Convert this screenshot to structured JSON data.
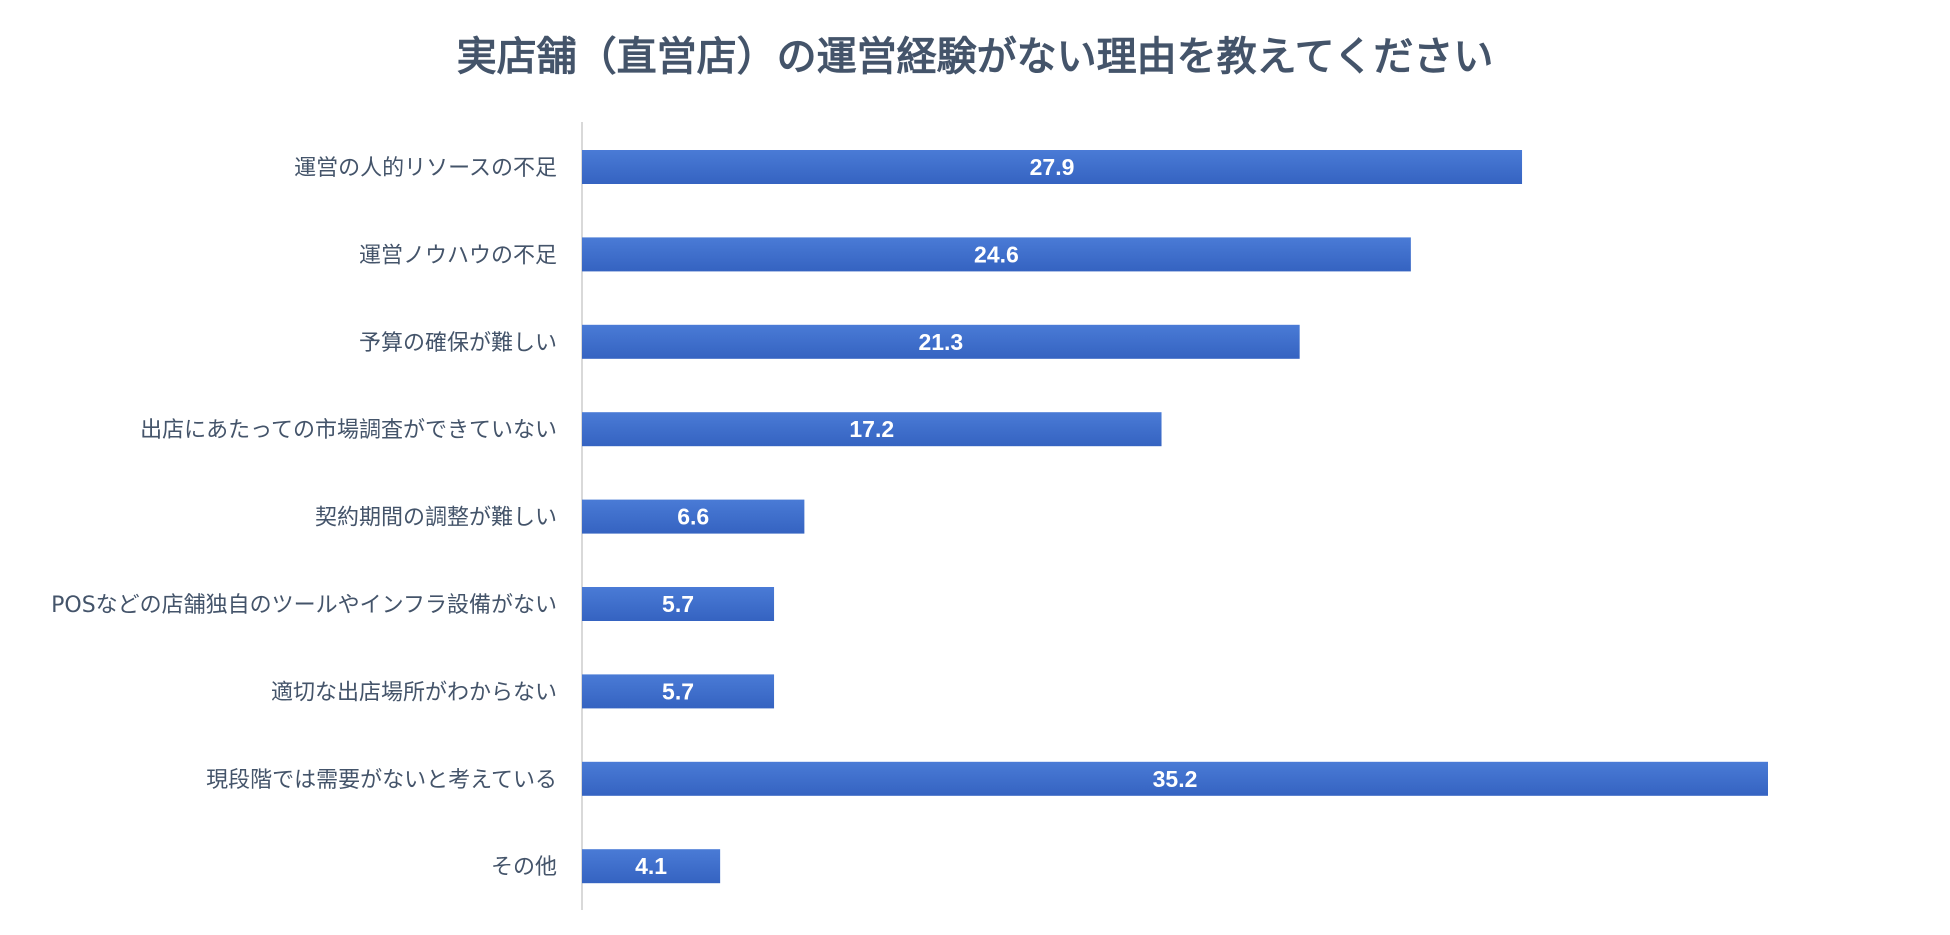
{
  "chart_data": {
    "type": "bar",
    "orientation": "horizontal",
    "title": "実店舗（直営店）の運営経験がない理由を教えてください",
    "xlabel": "",
    "ylabel": "",
    "categories": [
      "運営の人的リソースの不足",
      "運営ノウハウの不足",
      "予算の確保が難しい",
      "出店にあたっての市場調査ができていない",
      "契約期間の調整が難しい",
      "POSなどの店舗独自のツールやインフラ設備がない",
      "適切な出店場所がわからない",
      "現段階では需要がないと考えている",
      "その他"
    ],
    "values": [
      27.9,
      24.6,
      21.3,
      17.2,
      6.6,
      5.7,
      5.7,
      35.2,
      4.1
    ],
    "data_labels": [
      "27.9",
      "24.6",
      "21.3",
      "17.2",
      "6.6",
      "5.7",
      "5.7",
      "35.2",
      "4.1"
    ],
    "xlim": [
      0,
      35.2
    ],
    "grid": false,
    "legend": "none",
    "colors": {
      "bar_top": "#4a7bd6",
      "bar_bottom": "#3563c1",
      "text": "#44546a",
      "axis": "#d9d9d9",
      "data_label": "#ffffff"
    }
  }
}
